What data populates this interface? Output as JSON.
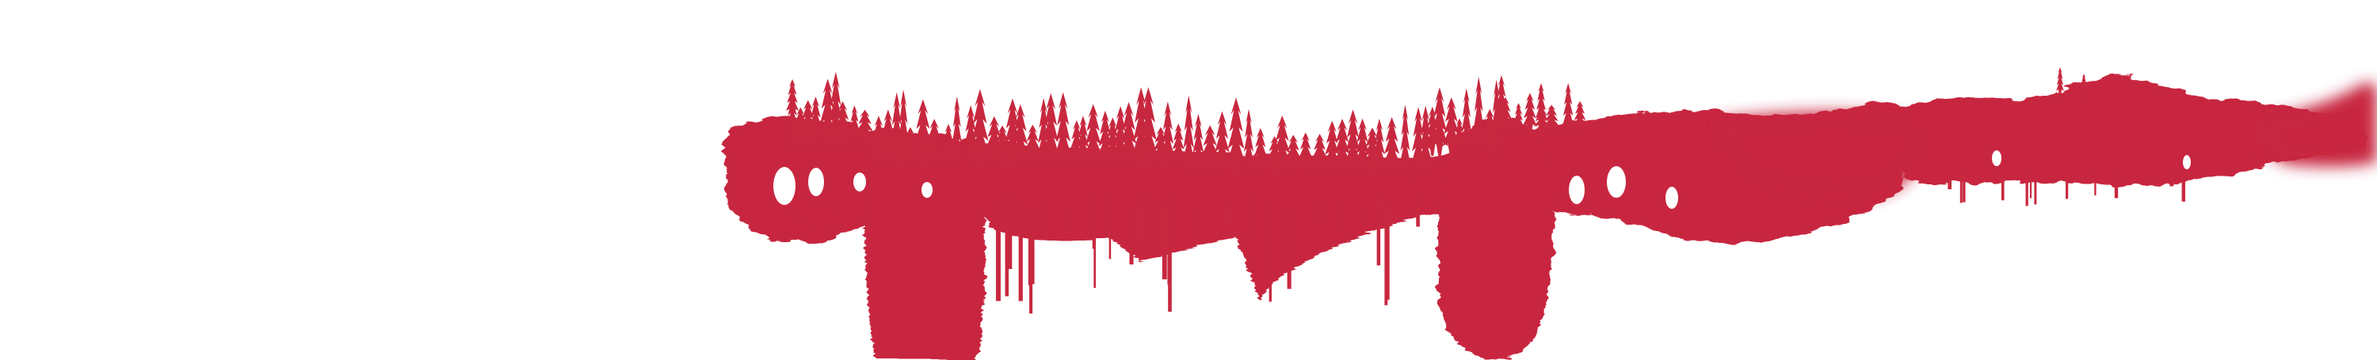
{
  "banner": {
    "background_color": "#ffffff",
    "paint_color": "#c8283f",
    "artwork": "red-brushstroke-forest-silhouette"
  }
}
